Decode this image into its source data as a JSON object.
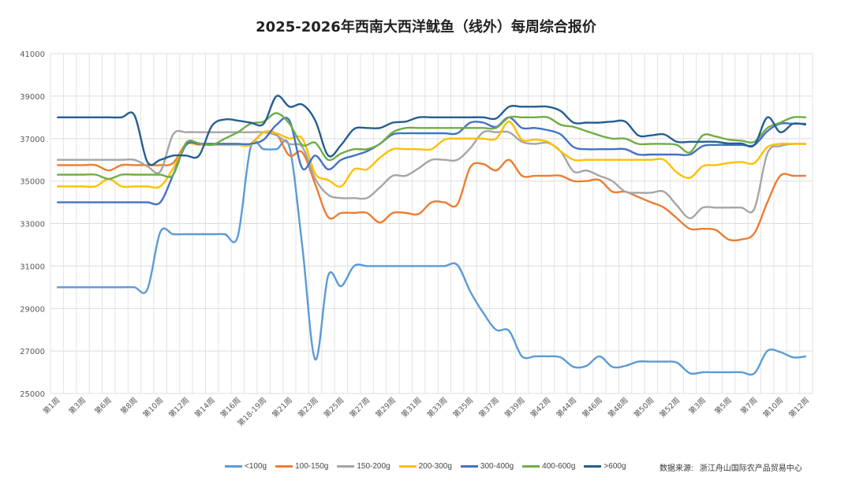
{
  "chart_data": {
    "type": "line",
    "title": "2025-2026年西南大西洋鱿鱼（线外）每周综合报价",
    "categories": [
      "第1周",
      "",
      "第3周",
      "",
      "第6周",
      "",
      "第8周",
      "",
      "第10周",
      "",
      "第12周",
      "",
      "第14周",
      "",
      "第16周",
      "",
      "第18-19周",
      "",
      "第21周",
      "",
      "第23周",
      "",
      "第25周",
      "",
      "第27周",
      "",
      "第29周",
      "",
      "第31周",
      "",
      "第33周",
      "",
      "第35周",
      "",
      "第37周",
      "",
      "第39周",
      "",
      "第42周",
      "",
      "第44周",
      "",
      "第46周",
      "",
      "第48周",
      "",
      "第50周",
      "",
      "第52周",
      "",
      "第3周",
      "",
      "第5周",
      "",
      "第7周",
      "",
      "第10周",
      "",
      "第12周"
    ],
    "ylim": [
      25000,
      41000
    ],
    "yticks": [
      25000,
      27000,
      29000,
      31000,
      33000,
      35000,
      37000,
      39000,
      41000
    ],
    "grid": true,
    "smooth": true,
    "legend_position": "bottom",
    "series": [
      {
        "name": "<100g",
        "color": "#5B9BD5",
        "values": [
          30000,
          30000,
          30000,
          30000,
          30000,
          30000,
          30000,
          29900,
          32600,
          32500,
          32500,
          32500,
          32500,
          32500,
          32400,
          36600,
          36500,
          36500,
          36600,
          31900,
          26600,
          30550,
          30050,
          31000,
          31000,
          31000,
          31000,
          31000,
          31000,
          31000,
          31000,
          31050,
          29800,
          28800,
          28000,
          27950,
          26750,
          26750,
          26750,
          26700,
          26250,
          26300,
          26750,
          26250,
          26300,
          26500,
          26500,
          26500,
          26450,
          25950,
          26000,
          26000,
          26000,
          26000,
          25950,
          27000,
          26950,
          26700,
          26750
        ]
      },
      {
        "name": "100-150g",
        "color": "#ED7D31",
        "values": [
          35750,
          35750,
          35750,
          35750,
          35500,
          35750,
          35750,
          35750,
          35750,
          35850,
          36750,
          36750,
          36750,
          36750,
          36750,
          36750,
          37300,
          37200,
          36200,
          36350,
          34850,
          33300,
          33500,
          33500,
          33500,
          33050,
          33500,
          33500,
          33450,
          34000,
          34000,
          33900,
          35650,
          35800,
          35500,
          36000,
          35250,
          35250,
          35250,
          35250,
          35000,
          35000,
          35050,
          34500,
          34500,
          34250,
          34000,
          33750,
          33250,
          32750,
          32750,
          32700,
          32250,
          32250,
          32550,
          34000,
          35250,
          35250,
          35250
        ]
      },
      {
        "name": "150-200g",
        "color": "#A5A5A5",
        "values": [
          36000,
          36000,
          36000,
          36000,
          36000,
          36000,
          36000,
          35700,
          35450,
          37200,
          37300,
          37300,
          37300,
          37300,
          37300,
          37300,
          37300,
          37150,
          36750,
          36600,
          35100,
          34350,
          34200,
          34200,
          34200,
          34700,
          35250,
          35250,
          35600,
          36000,
          36000,
          36000,
          36550,
          37300,
          37300,
          37300,
          36850,
          36750,
          36800,
          36400,
          35450,
          35500,
          35250,
          35000,
          34500,
          34450,
          34450,
          34500,
          33850,
          33250,
          33750,
          33750,
          33750,
          33750,
          33700,
          36300,
          36650,
          36750,
          36750
        ]
      },
      {
        "name": "200-300g",
        "color": "#FFC000",
        "values": [
          34750,
          34750,
          34750,
          34750,
          35100,
          34750,
          34750,
          34750,
          34750,
          35600,
          36700,
          36700,
          36700,
          36700,
          36700,
          36700,
          37300,
          37250,
          37000,
          37000,
          35350,
          35050,
          34750,
          35550,
          35550,
          36100,
          36500,
          36500,
          36500,
          36500,
          36950,
          37000,
          37000,
          37000,
          37000,
          37800,
          36950,
          36950,
          36850,
          36400,
          36000,
          36000,
          36000,
          36000,
          36000,
          36000,
          36000,
          36000,
          35400,
          35150,
          35700,
          35750,
          35850,
          35900,
          35850,
          36600,
          36750,
          36750,
          36750
        ]
      },
      {
        "name": "300-400g",
        "color": "#4472C4",
        "values": [
          34000,
          34000,
          34000,
          34000,
          34000,
          34000,
          34000,
          34000,
          34000,
          35300,
          36700,
          36750,
          36750,
          36750,
          36750,
          36750,
          36950,
          37650,
          37850,
          35600,
          36200,
          35550,
          36000,
          36200,
          36400,
          36750,
          37200,
          37250,
          37250,
          37250,
          37250,
          37250,
          37750,
          37750,
          37550,
          38000,
          37500,
          37500,
          37400,
          37200,
          36600,
          36500,
          36500,
          36500,
          36500,
          36250,
          36250,
          36250,
          36250,
          36250,
          36650,
          36700,
          36700,
          36700,
          36700,
          37350,
          37700,
          37700,
          37700
        ]
      },
      {
        "name": "400-600g",
        "color": "#70AD47",
        "values": [
          35300,
          35300,
          35300,
          35300,
          35100,
          35300,
          35300,
          35300,
          35300,
          35300,
          36800,
          36780,
          36700,
          37000,
          37300,
          37700,
          37800,
          38200,
          37700,
          36700,
          36800,
          36000,
          36300,
          36500,
          36500,
          36750,
          37300,
          37500,
          37500,
          37500,
          37500,
          37500,
          37500,
          37500,
          37500,
          38000,
          38000,
          38000,
          38000,
          37650,
          37550,
          37350,
          37150,
          37000,
          37000,
          36750,
          36750,
          36750,
          36700,
          36350,
          37150,
          37100,
          36950,
          36900,
          36850,
          37500,
          37750,
          38000,
          38000
        ]
      },
      {
        "name": ">600g",
        "color": "#255E91",
        "values": [
          38000,
          38000,
          38000,
          38000,
          38000,
          38000,
          38100,
          35900,
          36000,
          36200,
          36200,
          36200,
          37600,
          37900,
          37850,
          37750,
          37700,
          39000,
          38500,
          38600,
          37850,
          36200,
          36700,
          37450,
          37500,
          37500,
          37750,
          37800,
          38000,
          38000,
          38000,
          38000,
          38000,
          38000,
          37950,
          38500,
          38500,
          38500,
          38500,
          38300,
          37750,
          37750,
          37750,
          37800,
          37800,
          37150,
          37150,
          37200,
          36850,
          36850,
          36850,
          36850,
          36770,
          36770,
          36700,
          38000,
          37300,
          37700,
          37650
        ]
      }
    ]
  },
  "source": {
    "label": "数据来源:",
    "value": "浙江舟山国际农产品贸易中心"
  }
}
